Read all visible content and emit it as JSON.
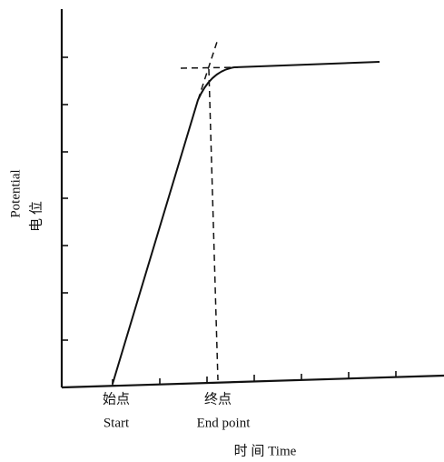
{
  "y_axis": {
    "label_en": "Potential",
    "label_zh": "电 位"
  },
  "x_axis": {
    "label": "时 间 Time"
  },
  "points": [
    {
      "label_zh": "始点",
      "label_en": "Start"
    },
    {
      "label_zh": "终点",
      "label_en": "End point"
    }
  ]
}
